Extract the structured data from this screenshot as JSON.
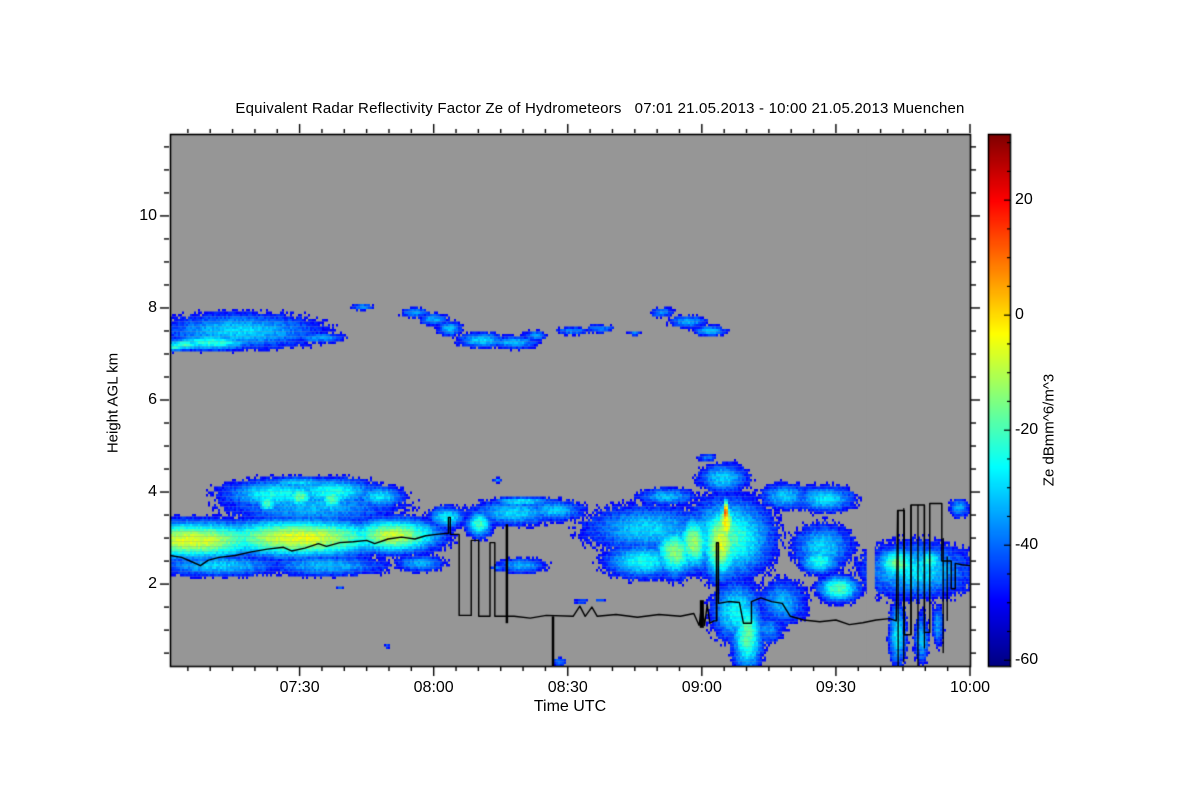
{
  "chart": {
    "title": "Equivalent Radar Reflectivity Factor Ze of Hydrometeors   07:01 21.05.2013 - 10:00 21.05.2013 Muenchen",
    "xlabel": "Time UTC",
    "ylabel": "Height AGL km",
    "colorbar_label": "Ze dBmm^6/m^3",
    "location": "Muenchen",
    "date": "21.05.2013",
    "time_start": "07:01",
    "time_end": "10:00"
  },
  "chart_data": {
    "type": "heatmap",
    "title": "Equivalent Radar Reflectivity Factor Ze of Hydrometeors",
    "xlabel": "Time UTC",
    "ylabel": "Height AGL km",
    "time_range_hours": [
      7.0167,
      10.0
    ],
    "height_range_km": [
      0.22,
      11.78
    ],
    "x_ticks": [
      {
        "label": "07:30",
        "hour": 7.5
      },
      {
        "label": "08:00",
        "hour": 8.0
      },
      {
        "label": "08:30",
        "hour": 8.5
      },
      {
        "label": "09:00",
        "hour": 9.0
      },
      {
        "label": "09:30",
        "hour": 9.5
      },
      {
        "label": "10:00",
        "hour": 10.0
      }
    ],
    "x_minor_step_minutes": 5,
    "y_ticks": [
      {
        "label": "2",
        "km": 2
      },
      {
        "label": "4",
        "km": 4
      },
      {
        "label": "6",
        "km": 6
      },
      {
        "label": "8",
        "km": 8
      },
      {
        "label": "10",
        "km": 10
      }
    ],
    "y_minor_step_km": 0.5,
    "colorbar": {
      "label": "Ze dBmm^6/m^3",
      "value_range": [
        -61,
        31.5
      ],
      "ticks": [
        {
          "label": "20",
          "value": 20
        },
        {
          "label": "0",
          "value": 0
        },
        {
          "label": "-20",
          "value": -20
        },
        {
          "label": "-40",
          "value": -40
        },
        {
          "label": "-60",
          "value": -60
        }
      ],
      "minor_step": 5,
      "palette": "jet"
    },
    "background_color": "#969696",
    "frame_color": "#000000",
    "noise_db": 3.2,
    "display_threshold_db": -50,
    "echo_field_order": [
      "time_hours",
      "height_km",
      "radius_t_hours",
      "radius_h_km",
      "peak_dbz"
    ],
    "echo_regions": [
      [
        7.28,
        7.5,
        0.33,
        0.42,
        -30
      ],
      [
        7.17,
        7.25,
        0.17,
        0.18,
        -22
      ],
      [
        7.07,
        7.2,
        0.08,
        0.12,
        -20
      ],
      [
        7.03,
        7.15,
        0.05,
        0.1,
        -22
      ],
      [
        7.58,
        7.35,
        0.1,
        0.12,
        -34
      ],
      [
        7.735,
        8.02,
        0.045,
        0.09,
        -36
      ],
      [
        7.93,
        7.9,
        0.06,
        0.12,
        -35
      ],
      [
        8.0,
        7.75,
        0.06,
        0.14,
        -33
      ],
      [
        8.06,
        7.55,
        0.05,
        0.18,
        -32
      ],
      [
        8.18,
        7.3,
        0.1,
        0.18,
        -30
      ],
      [
        8.3,
        7.25,
        0.1,
        0.15,
        -32
      ],
      [
        8.38,
        7.4,
        0.05,
        0.12,
        -35
      ],
      [
        8.52,
        7.5,
        0.07,
        0.1,
        -36
      ],
      [
        8.62,
        7.55,
        0.06,
        0.1,
        -36
      ],
      [
        8.75,
        7.45,
        0.03,
        0.06,
        -38
      ],
      [
        8.85,
        7.9,
        0.05,
        0.12,
        -36
      ],
      [
        8.95,
        7.7,
        0.08,
        0.15,
        -34
      ],
      [
        9.03,
        7.5,
        0.07,
        0.13,
        -33
      ],
      [
        7.1,
        2.95,
        0.3,
        0.42,
        -6
      ],
      [
        7.5,
        3.0,
        0.35,
        0.42,
        -5
      ],
      [
        7.85,
        3.05,
        0.18,
        0.38,
        -8
      ],
      [
        7.2,
        2.4,
        0.25,
        0.25,
        -30
      ],
      [
        7.6,
        2.4,
        0.25,
        0.25,
        -32
      ],
      [
        7.95,
        2.45,
        0.1,
        0.2,
        -33
      ],
      [
        7.42,
        3.95,
        0.22,
        0.35,
        -25
      ],
      [
        7.62,
        4.0,
        0.18,
        0.32,
        -24
      ],
      [
        7.8,
        3.9,
        0.1,
        0.25,
        -28
      ],
      [
        7.55,
        3.7,
        0.35,
        0.5,
        -33
      ],
      [
        7.5,
        3.9,
        0.06,
        0.25,
        -17
      ],
      [
        7.62,
        3.85,
        0.05,
        0.3,
        -18
      ],
      [
        7.38,
        3.75,
        0.04,
        0.2,
        -19
      ],
      [
        7.5,
        4.2,
        0.15,
        0.15,
        -30
      ],
      [
        8.05,
        3.45,
        0.07,
        0.25,
        -26
      ],
      [
        8.17,
        3.3,
        0.05,
        0.3,
        -20
      ],
      [
        8.3,
        3.55,
        0.18,
        0.3,
        -30
      ],
      [
        8.45,
        3.6,
        0.12,
        0.25,
        -31
      ],
      [
        8.33,
        3.8,
        0.12,
        0.1,
        -27
      ],
      [
        8.33,
        2.4,
        0.1,
        0.18,
        -33
      ],
      [
        8.24,
        2.35,
        0.03,
        0.08,
        -36
      ],
      [
        8.24,
        4.26,
        0.02,
        0.06,
        -36
      ],
      [
        8.55,
        1.62,
        0.03,
        0.06,
        -38
      ],
      [
        8.62,
        1.65,
        0.02,
        0.05,
        -40
      ],
      [
        8.47,
        0.3,
        0.03,
        0.12,
        -38
      ],
      [
        7.83,
        0.65,
        0.015,
        0.05,
        -40
      ],
      [
        7.65,
        1.93,
        0.015,
        0.05,
        -38
      ],
      [
        8.8,
        3.2,
        0.25,
        0.55,
        -30
      ],
      [
        8.78,
        2.5,
        0.15,
        0.4,
        -25
      ],
      [
        8.9,
        2.7,
        0.08,
        0.55,
        -14
      ],
      [
        8.97,
        2.9,
        0.06,
        0.6,
        -12
      ],
      [
        8.87,
        3.9,
        0.12,
        0.2,
        -32
      ],
      [
        9.1,
        3.0,
        0.17,
        0.9,
        -20
      ],
      [
        9.07,
        2.9,
        0.07,
        0.8,
        -6
      ],
      [
        9.09,
        3.55,
        0.012,
        0.28,
        16
      ],
      [
        9.09,
        3.3,
        0.035,
        0.45,
        -2
      ],
      [
        9.08,
        4.3,
        0.1,
        0.35,
        -30
      ],
      [
        9.02,
        4.75,
        0.04,
        0.1,
        -38
      ],
      [
        9.17,
        0.9,
        0.06,
        0.85,
        -18
      ],
      [
        9.13,
        1.4,
        0.1,
        0.7,
        -26
      ],
      [
        9.3,
        1.6,
        0.1,
        0.55,
        -33
      ],
      [
        9.25,
        1.0,
        0.06,
        0.35,
        -36
      ],
      [
        9.31,
        3.9,
        0.1,
        0.3,
        -31
      ],
      [
        9.45,
        2.8,
        0.12,
        0.55,
        -30
      ],
      [
        9.44,
        2.5,
        0.08,
        0.3,
        -24
      ],
      [
        9.46,
        3.85,
        0.12,
        0.3,
        -28
      ],
      [
        9.51,
        1.9,
        0.08,
        0.3,
        -18
      ],
      [
        9.8,
        2.3,
        0.22,
        0.65,
        -28
      ],
      [
        9.73,
        2.45,
        0.08,
        0.35,
        -16
      ],
      [
        9.85,
        2.5,
        0.06,
        0.3,
        -22
      ],
      [
        9.73,
        0.9,
        0.035,
        0.75,
        -27
      ],
      [
        9.82,
        0.8,
        0.03,
        0.6,
        -32
      ],
      [
        9.88,
        1.1,
        0.025,
        0.5,
        -35
      ],
      [
        9.96,
        3.65,
        0.04,
        0.22,
        -33
      ]
    ],
    "data_gap": {
      "t_start": 9.615,
      "t_end": 9.645
    },
    "ceilometer_line_points": [
      [
        7.017,
        2.62
      ],
      [
        7.06,
        2.58
      ],
      [
        7.1,
        2.48
      ],
      [
        7.13,
        2.4
      ],
      [
        7.16,
        2.52
      ],
      [
        7.2,
        2.58
      ],
      [
        7.26,
        2.62
      ],
      [
        7.32,
        2.7
      ],
      [
        7.38,
        2.76
      ],
      [
        7.44,
        2.8
      ],
      [
        7.47,
        2.72
      ],
      [
        7.52,
        2.78
      ],
      [
        7.57,
        2.88
      ],
      [
        7.6,
        2.82
      ],
      [
        7.65,
        2.9
      ],
      [
        7.7,
        2.92
      ],
      [
        7.75,
        2.95
      ],
      [
        7.78,
        2.88
      ],
      [
        7.83,
        2.98
      ],
      [
        7.88,
        3.02
      ],
      [
        7.93,
        2.98
      ],
      [
        7.97,
        3.05
      ],
      [
        8.01,
        3.08
      ],
      [
        8.045,
        3.1
      ],
      [
        8.055,
        3.1
      ],
      [
        8.055,
        3.45
      ],
      [
        8.062,
        3.45
      ],
      [
        8.062,
        3.08
      ],
      [
        8.095,
        3.08
      ],
      [
        8.095,
        1.32
      ],
      [
        8.14,
        1.32
      ],
      [
        8.14,
        2.95
      ],
      [
        8.168,
        2.95
      ],
      [
        8.168,
        1.3
      ],
      [
        8.21,
        1.3
      ],
      [
        8.21,
        2.9
      ],
      [
        8.228,
        2.9
      ],
      [
        8.228,
        1.3
      ],
      [
        8.3,
        1.3
      ],
      [
        8.36,
        1.26
      ],
      [
        8.42,
        1.32
      ],
      [
        8.52,
        1.3
      ],
      [
        8.545,
        1.52
      ],
      [
        8.565,
        1.3
      ],
      [
        8.59,
        1.5
      ],
      [
        8.61,
        1.3
      ],
      [
        8.68,
        1.34
      ],
      [
        8.76,
        1.28
      ],
      [
        8.84,
        1.34
      ],
      [
        8.92,
        1.3
      ],
      [
        8.97,
        1.36
      ],
      [
        8.99,
        1.1
      ],
      [
        9.0,
        1.6
      ],
      [
        9.01,
        1.1
      ],
      [
        9.02,
        1.55
      ],
      [
        9.03,
        1.15
      ],
      [
        9.045,
        1.2
      ],
      [
        9.055,
        1.2
      ],
      [
        9.055,
        2.9
      ],
      [
        9.062,
        2.9
      ],
      [
        9.062,
        1.58
      ],
      [
        9.1,
        1.62
      ],
      [
        9.14,
        1.6
      ],
      [
        9.155,
        1.15
      ],
      [
        9.185,
        1.15
      ],
      [
        9.185,
        1.62
      ],
      [
        9.22,
        1.7
      ],
      [
        9.26,
        1.62
      ],
      [
        9.3,
        1.58
      ],
      [
        9.33,
        1.3
      ],
      [
        9.38,
        1.22
      ],
      [
        9.44,
        1.18
      ],
      [
        9.5,
        1.22
      ],
      [
        9.55,
        1.12
      ],
      [
        9.6,
        1.16
      ],
      [
        9.65,
        1.22
      ],
      [
        9.7,
        1.25
      ],
      [
        9.725,
        1.2
      ],
      [
        9.73,
        3.6
      ],
      [
        9.755,
        3.6
      ],
      [
        9.755,
        0.9
      ],
      [
        9.78,
        0.9
      ],
      [
        9.78,
        3.72
      ],
      [
        9.83,
        3.72
      ],
      [
        9.83,
        0.95
      ],
      [
        9.85,
        0.95
      ],
      [
        9.85,
        3.75
      ],
      [
        9.895,
        3.75
      ],
      [
        9.895,
        2.5
      ],
      [
        9.93,
        2.5
      ],
      [
        9.93,
        1.9
      ],
      [
        9.945,
        1.9
      ],
      [
        9.945,
        2.45
      ],
      [
        9.97,
        2.42
      ],
      [
        10.0,
        2.4
      ]
    ],
    "ceilometer_bar_field_order": [
      "time_hours",
      "height_bottom_km",
      "height_top_km",
      "width_px"
    ],
    "ceilometer_bars": [
      [
        8.273,
        1.15,
        3.3,
        2.5
      ],
      [
        8.445,
        0.05,
        1.3,
        2.5
      ],
      [
        9.0,
        1.05,
        1.65,
        4
      ],
      [
        9.055,
        1.2,
        2.9,
        1.5
      ],
      [
        9.732,
        0.15,
        3.6,
        1.3
      ],
      [
        9.753,
        0.3,
        3.65,
        1.3
      ],
      [
        9.78,
        0.9,
        3.72,
        1.3
      ],
      [
        9.806,
        0.2,
        3.72,
        1.3
      ],
      [
        9.83,
        0.6,
        3.7,
        1.3
      ],
      [
        9.9,
        0.5,
        3.0,
        1.3
      ],
      [
        9.915,
        1.2,
        2.6,
        1.3
      ]
    ]
  }
}
